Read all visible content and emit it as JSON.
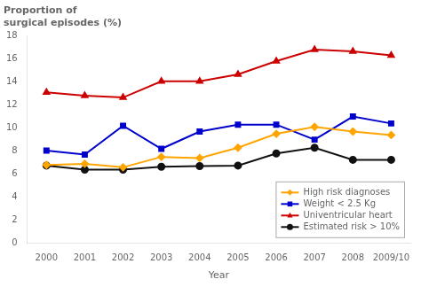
{
  "chart_data": {
    "type": "line",
    "ylabel": [
      "Proportion of",
      "surgical episodes (%)"
    ],
    "xlabel": "Year",
    "categories": [
      "2000",
      "2001",
      "2002",
      "2003",
      "2004",
      "2005",
      "2006",
      "2007",
      "2008",
      "2009/10"
    ],
    "series": [
      {
        "name": "High risk diagnoses",
        "color": "#FFA500",
        "marker": "diamond",
        "values": [
          6.8,
          6.9,
          6.6,
          7.5,
          7.4,
          8.3,
          9.5,
          10.1,
          9.7,
          9.4
        ]
      },
      {
        "name": "Weight < 2.5 Kg",
        "color": "#0000CD",
        "marker": "square",
        "values": [
          8.05,
          7.7,
          10.2,
          8.2,
          9.7,
          10.3,
          10.3,
          9.0,
          11.0,
          10.4
        ]
      },
      {
        "name": "Univentricular heart",
        "color": "#CC0000",
        "marker": "triangle",
        "values": [
          13.1,
          12.8,
          12.65,
          14.05,
          14.05,
          14.65,
          15.8,
          16.8,
          16.65,
          16.3
        ]
      },
      {
        "name": "Estimated risk > 10%",
        "color": "#111111",
        "marker": "circle",
        "values": [
          6.75,
          6.4,
          6.4,
          6.65,
          6.7,
          6.75,
          7.8,
          8.3,
          7.25,
          7.25
        ]
      }
    ],
    "ylim": [
      0,
      18
    ],
    "yticks": [
      0,
      2,
      4,
      6,
      8,
      10,
      12,
      14,
      16,
      18
    ],
    "grid": false,
    "legend": "lower right"
  }
}
